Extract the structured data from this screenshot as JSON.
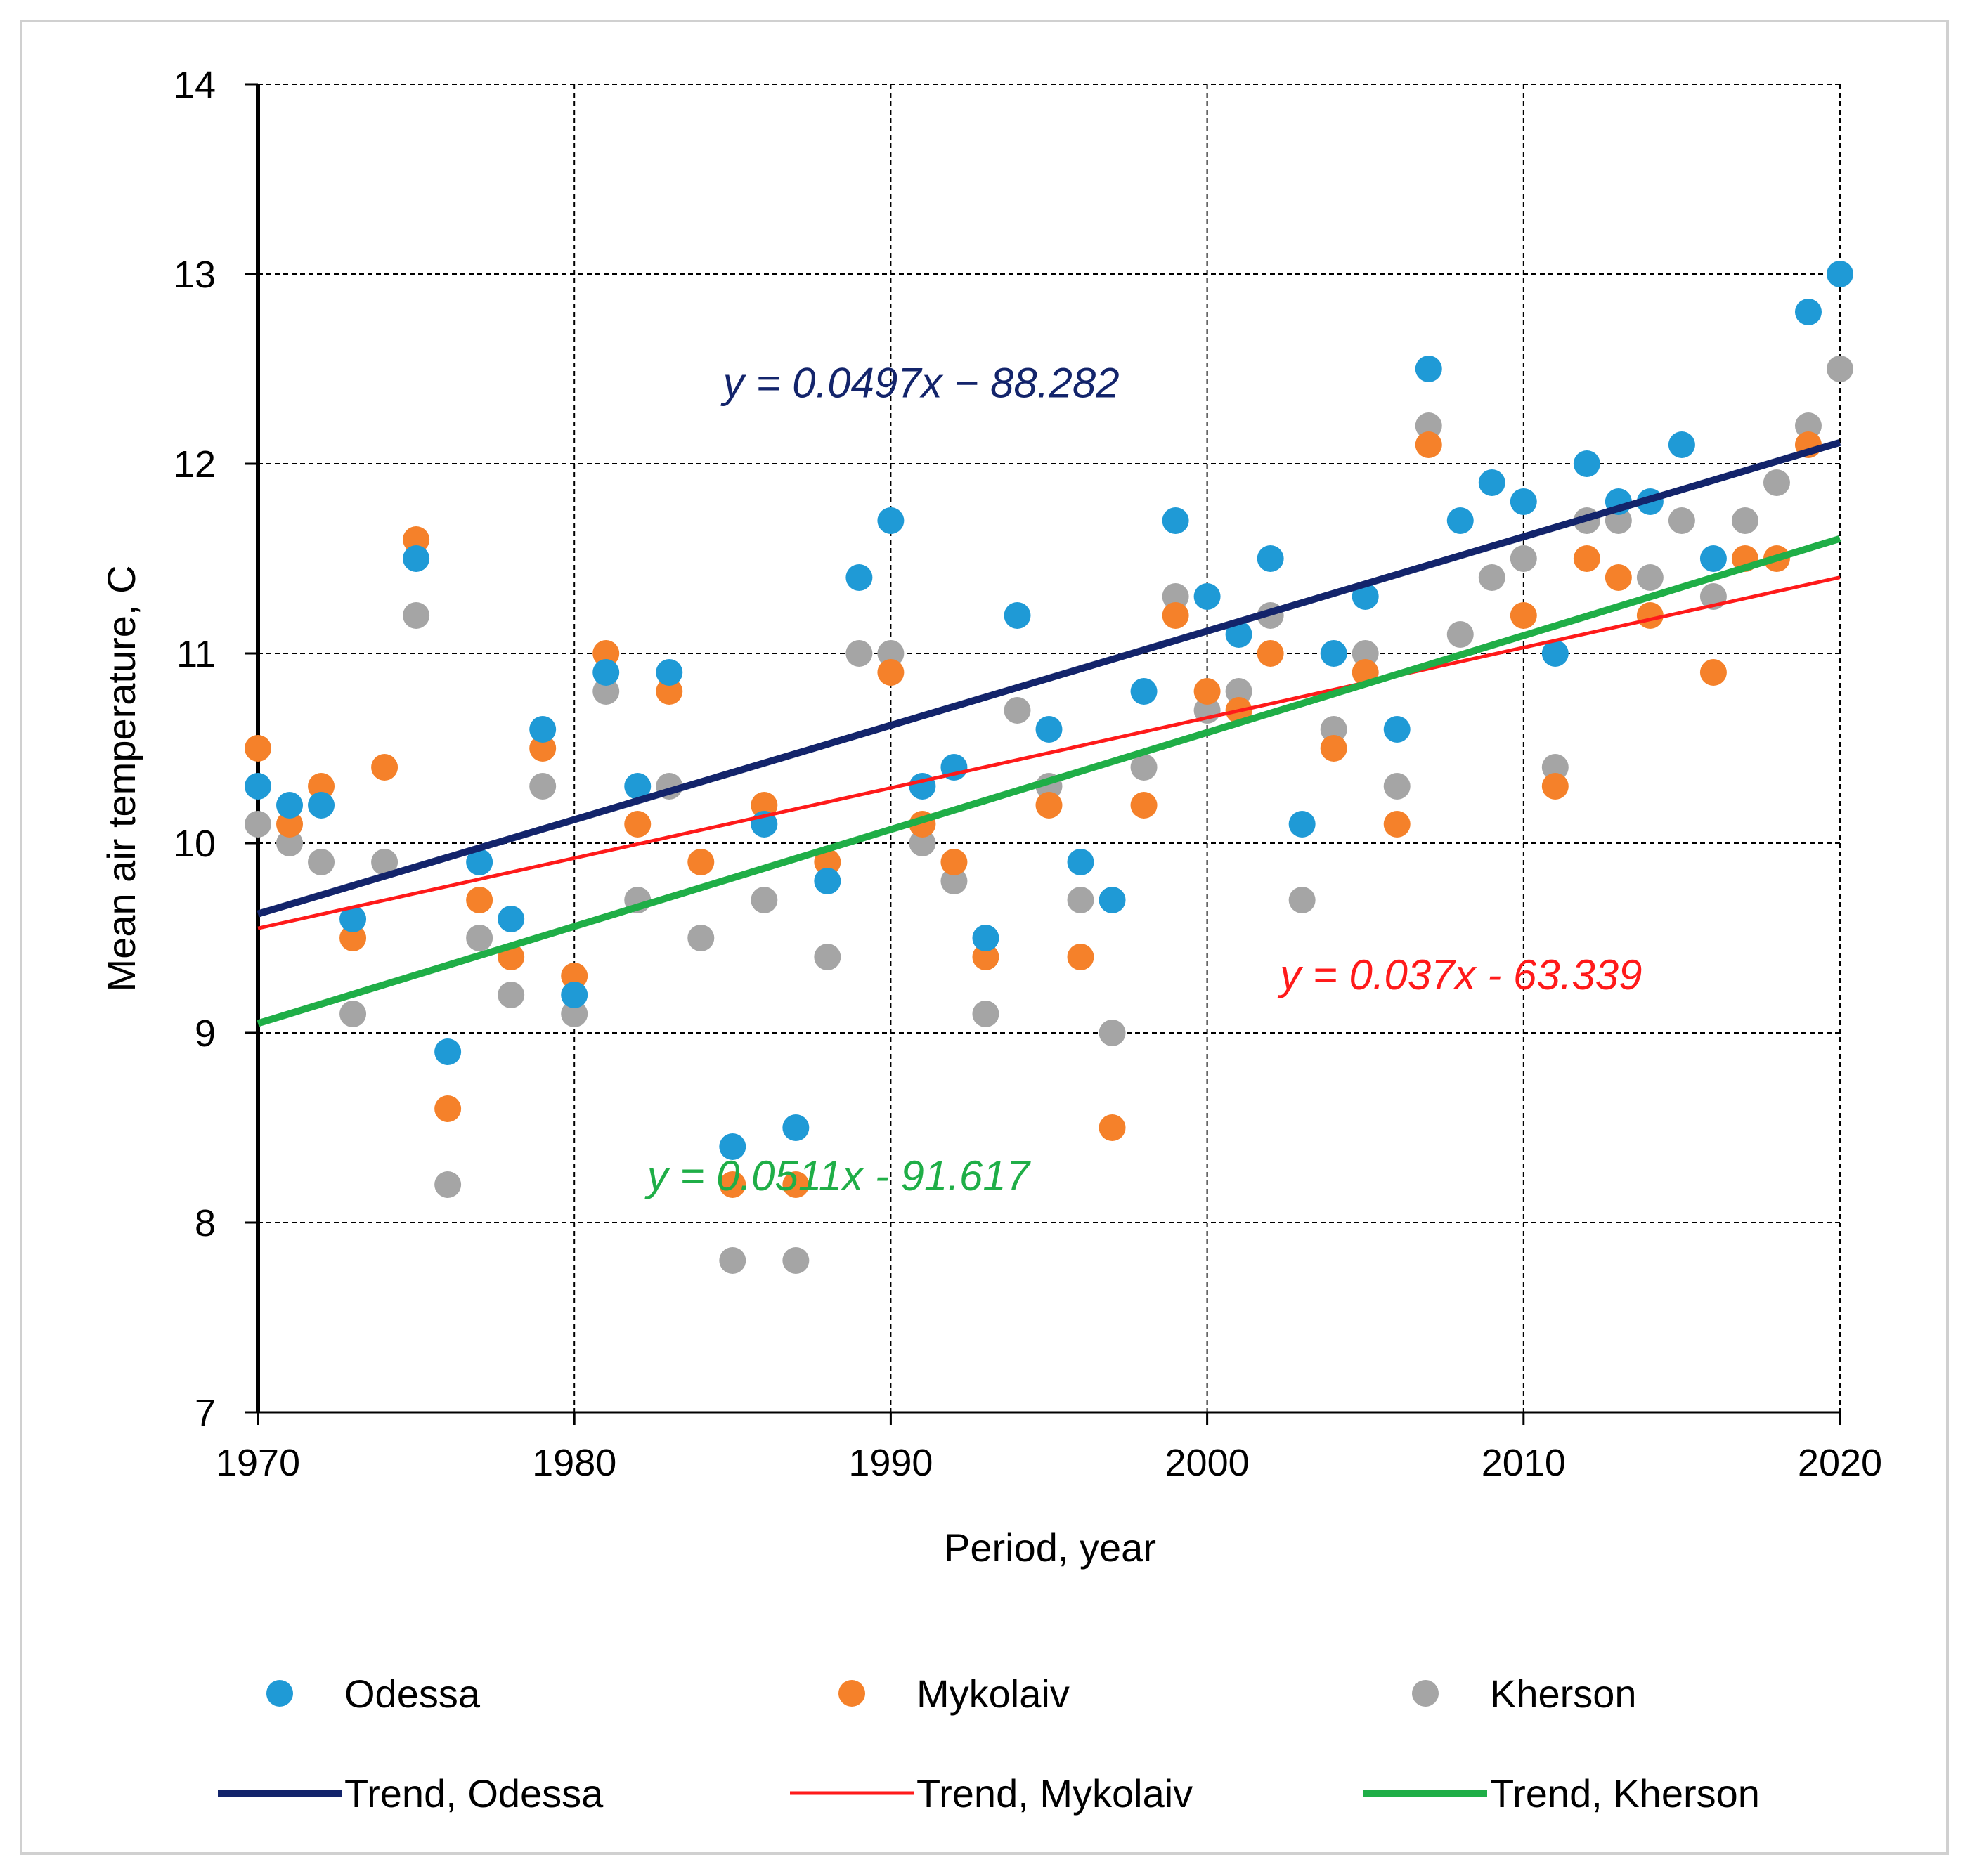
{
  "chart_data": {
    "type": "scatter",
    "xlabel": "Period, year",
    "ylabel": "Mean air temperature, C",
    "xlim": [
      1970,
      2020
    ],
    "ylim": [
      7,
      14
    ],
    "x_ticks": [
      1970,
      1980,
      1990,
      2000,
      2010,
      2020
    ],
    "y_ticks": [
      7,
      8,
      9,
      10,
      11,
      12,
      13,
      14
    ],
    "grid": true,
    "legend_position": "bottom",
    "series": [
      {
        "name": "Odessa",
        "color": "#1f9ad6",
        "points": [
          [
            1970,
            10.3
          ],
          [
            1971,
            10.2
          ],
          [
            1972,
            10.2
          ],
          [
            1973,
            9.6
          ],
          [
            1975,
            11.5
          ],
          [
            1976,
            8.9
          ],
          [
            1977,
            9.9
          ],
          [
            1978,
            9.6
          ],
          [
            1979,
            10.6
          ],
          [
            1980,
            9.2
          ],
          [
            1981,
            10.9
          ],
          [
            1982,
            10.3
          ],
          [
            1983,
            10.9
          ],
          [
            1985,
            8.4
          ],
          [
            1986,
            10.1
          ],
          [
            1987,
            8.5
          ],
          [
            1988,
            9.8
          ],
          [
            1989,
            11.4
          ],
          [
            1990,
            11.7
          ],
          [
            1991,
            10.3
          ],
          [
            1992,
            10.4
          ],
          [
            1993,
            9.5
          ],
          [
            1994,
            11.2
          ],
          [
            1995,
            10.6
          ],
          [
            1996,
            9.9
          ],
          [
            1997,
            9.7
          ],
          [
            1998,
            10.8
          ],
          [
            1999,
            11.7
          ],
          [
            2000,
            11.3
          ],
          [
            2001,
            11.1
          ],
          [
            2002,
            11.5
          ],
          [
            2003,
            10.1
          ],
          [
            2004,
            11.0
          ],
          [
            2005,
            11.3
          ],
          [
            2006,
            10.6
          ],
          [
            2007,
            12.5
          ],
          [
            2008,
            11.7
          ],
          [
            2009,
            11.9
          ],
          [
            2010,
            11.8
          ],
          [
            2011,
            11.0
          ],
          [
            2012,
            12.0
          ],
          [
            2013,
            11.8
          ],
          [
            2014,
            11.8
          ],
          [
            2015,
            12.1
          ],
          [
            2016,
            11.5
          ],
          [
            2019,
            12.8
          ],
          [
            2020,
            13.0
          ]
        ]
      },
      {
        "name": "Mykolaiv",
        "color": "#f5812a",
        "points": [
          [
            1970,
            10.5
          ],
          [
            1971,
            10.1
          ],
          [
            1972,
            10.3
          ],
          [
            1973,
            9.5
          ],
          [
            1974,
            10.4
          ],
          [
            1975,
            11.6
          ],
          [
            1976,
            8.6
          ],
          [
            1977,
            9.7
          ],
          [
            1978,
            9.4
          ],
          [
            1979,
            10.5
          ],
          [
            1980,
            9.3
          ],
          [
            1981,
            11.0
          ],
          [
            1982,
            10.1
          ],
          [
            1983,
            10.8
          ],
          [
            1984,
            9.9
          ],
          [
            1985,
            8.2
          ],
          [
            1986,
            10.2
          ],
          [
            1987,
            8.2
          ],
          [
            1988,
            9.9
          ],
          [
            1990,
            10.9
          ],
          [
            1991,
            10.1
          ],
          [
            1992,
            9.9
          ],
          [
            1993,
            9.4
          ],
          [
            1995,
            10.2
          ],
          [
            1996,
            9.4
          ],
          [
            1997,
            8.5
          ],
          [
            1998,
            10.2
          ],
          [
            1999,
            11.2
          ],
          [
            2000,
            10.8
          ],
          [
            2001,
            10.7
          ],
          [
            2002,
            11.0
          ],
          [
            2004,
            10.5
          ],
          [
            2005,
            10.9
          ],
          [
            2006,
            10.1
          ],
          [
            2007,
            12.1
          ],
          [
            2010,
            11.2
          ],
          [
            2011,
            10.3
          ],
          [
            2012,
            11.5
          ],
          [
            2013,
            11.4
          ],
          [
            2014,
            11.2
          ],
          [
            2016,
            10.9
          ],
          [
            2017,
            11.5
          ],
          [
            2018,
            11.5
          ],
          [
            2019,
            12.1
          ]
        ]
      },
      {
        "name": "Kherson",
        "color": "#a5a5a5",
        "points": [
          [
            1970,
            10.1
          ],
          [
            1971,
            10.0
          ],
          [
            1972,
            9.9
          ],
          [
            1973,
            9.1
          ],
          [
            1974,
            9.9
          ],
          [
            1975,
            11.2
          ],
          [
            1976,
            8.2
          ],
          [
            1977,
            9.5
          ],
          [
            1978,
            9.2
          ],
          [
            1979,
            10.3
          ],
          [
            1980,
            9.1
          ],
          [
            1981,
            10.8
          ],
          [
            1982,
            9.7
          ],
          [
            1983,
            10.3
          ],
          [
            1984,
            9.5
          ],
          [
            1985,
            7.8
          ],
          [
            1986,
            9.7
          ],
          [
            1987,
            7.8
          ],
          [
            1988,
            9.4
          ],
          [
            1989,
            11.0
          ],
          [
            1990,
            11.0
          ],
          [
            1991,
            10.0
          ],
          [
            1992,
            9.8
          ],
          [
            1993,
            9.1
          ],
          [
            1994,
            10.7
          ],
          [
            1995,
            10.3
          ],
          [
            1996,
            9.7
          ],
          [
            1997,
            9.0
          ],
          [
            1998,
            10.4
          ],
          [
            1999,
            11.3
          ],
          [
            2000,
            10.7
          ],
          [
            2001,
            10.8
          ],
          [
            2002,
            11.2
          ],
          [
            2003,
            9.7
          ],
          [
            2004,
            10.6
          ],
          [
            2005,
            11.0
          ],
          [
            2006,
            10.3
          ],
          [
            2007,
            12.2
          ],
          [
            2008,
            11.1
          ],
          [
            2009,
            11.4
          ],
          [
            2010,
            11.5
          ],
          [
            2011,
            10.4
          ],
          [
            2012,
            11.7
          ],
          [
            2013,
            11.7
          ],
          [
            2014,
            11.4
          ],
          [
            2015,
            11.7
          ],
          [
            2016,
            11.3
          ],
          [
            2017,
            11.7
          ],
          [
            2018,
            11.9
          ],
          [
            2019,
            12.2
          ],
          [
            2020,
            12.5
          ]
        ]
      }
    ],
    "trendlines": [
      {
        "name": "Trend, Odessa",
        "color": "#13246b",
        "slope": 0.0497,
        "intercept": -88.282,
        "equation": "y = 0.0497x − 88.282",
        "width": 10
      },
      {
        "name": "Trend, Mykolaiv",
        "color": "#ff1a1a",
        "slope": 0.037,
        "intercept": -63.339,
        "equation": "y = 0.037x - 63.339",
        "width": 5
      },
      {
        "name": "Trend, Kherson",
        "color": "#1fae47",
        "slope": 0.0511,
        "intercept": -91.617,
        "equation": "y = 0.0511x - 91.617",
        "width": 10
      }
    ]
  }
}
